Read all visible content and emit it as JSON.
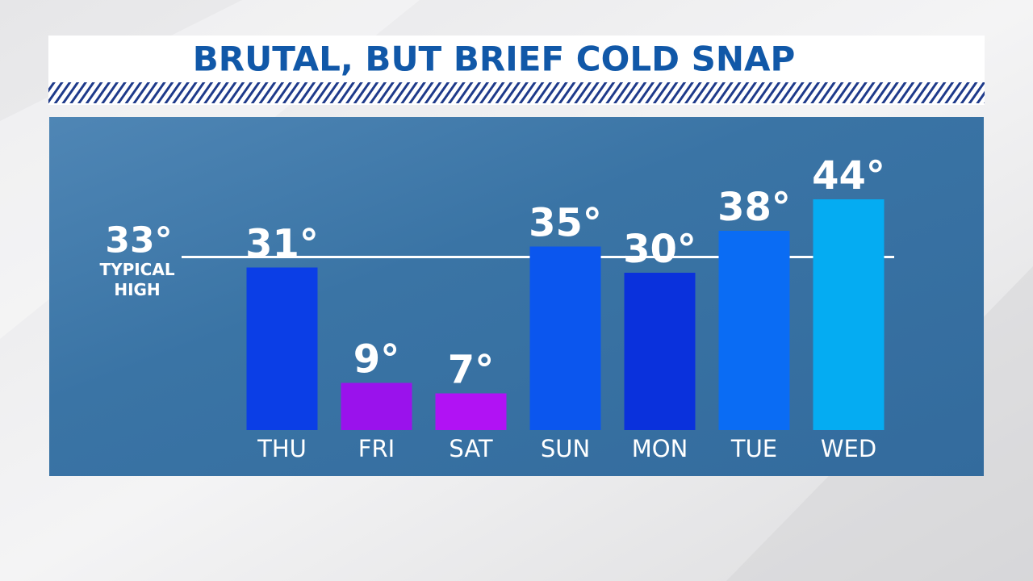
{
  "chart_data": {
    "type": "bar",
    "title": "BRUTAL, BUT BRIEF COLD SNAP",
    "categories": [
      "THU",
      "FRI",
      "SAT",
      "SUN",
      "MON",
      "TUE",
      "WED"
    ],
    "values": [
      31,
      9,
      7,
      35,
      30,
      38,
      44
    ],
    "value_labels": [
      "31°",
      "9°",
      "7°",
      "35°",
      "30°",
      "38°",
      "44°"
    ],
    "colors": [
      "#0b3ee6",
      "#9a12ec",
      "#b112f4",
      "#0b56ee",
      "#0a31dc",
      "#0a6cf4",
      "#05acf2"
    ],
    "ylim": [
      0,
      50
    ],
    "reference_line": {
      "value": 33,
      "label": "33°",
      "text": "TYPICAL HIGH",
      "color": "#ffffff"
    }
  }
}
